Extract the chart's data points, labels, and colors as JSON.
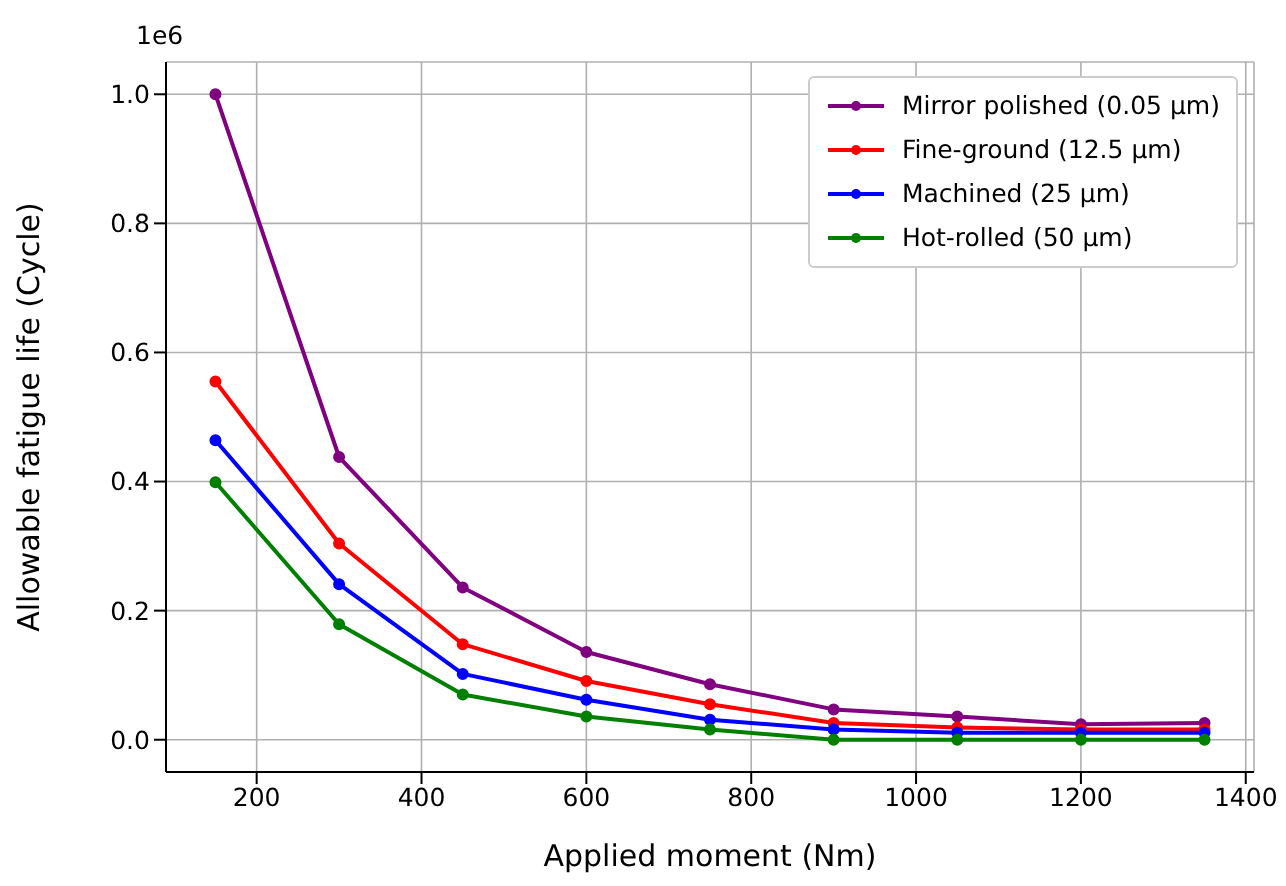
{
  "chart_data": {
    "type": "line",
    "xlabel": "Applied moment (Nm)",
    "ylabel": "Allowable fatigue life (Cycle)",
    "annotations": [
      "1e6"
    ],
    "x": [
      150,
      300,
      450,
      600,
      750,
      900,
      1050,
      1200,
      1350
    ],
    "series": [
      {
        "name": "Mirror polished (0.05 μm)",
        "color": "#800080",
        "values": [
          1.0,
          0.438,
          0.236,
          0.136,
          0.086,
          0.047,
          0.036,
          0.024,
          0.026
        ]
      },
      {
        "name": "Fine-ground (12.5 μm)",
        "color": "#ff0000",
        "values": [
          0.555,
          0.304,
          0.148,
          0.091,
          0.055,
          0.026,
          0.019,
          0.016,
          0.016
        ]
      },
      {
        "name": "Machined (25 μm)",
        "color": "#0000ff",
        "values": [
          0.464,
          0.241,
          0.102,
          0.062,
          0.031,
          0.016,
          0.011,
          0.011,
          0.011
        ]
      },
      {
        "name": "Hot-rolled (50 μm)",
        "color": "#008000",
        "values": [
          0.399,
          0.179,
          0.07,
          0.036,
          0.016,
          0,
          0,
          0,
          0
        ]
      }
    ],
    "xlim": [
      90,
      1410
    ],
    "xticks": [
      200,
      400,
      600,
      800,
      1000,
      1200,
      1400
    ],
    "ylim": [
      -0.05,
      1.05
    ],
    "yticks": [
      {
        "value": 0,
        "label": "0.0"
      },
      0.2,
      0.4,
      0.6,
      0.8,
      {
        "value": 1,
        "label": "1.0"
      }
    ],
    "grid": true,
    "legend": "top right",
    "marker": "circle",
    "line_style": "solid"
  }
}
